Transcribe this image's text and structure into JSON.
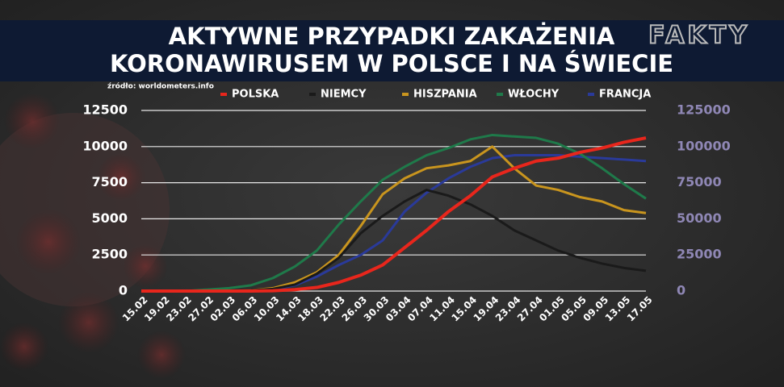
{
  "chart_data": {
    "type": "line",
    "title": [
      "AKTYWNE PRZYPADKI ZAKAŻENIA",
      "KORONAWIRUSEM W POLSCE I NA ŚWIECIE"
    ],
    "logo": "FAKTY",
    "source": "źródło: worldometers.info",
    "categories": [
      "15.02",
      "19.02",
      "23.02",
      "27.02",
      "02.03",
      "06.03",
      "10.03",
      "14.03",
      "18.03",
      "22.03",
      "26.03",
      "30.03",
      "03.04",
      "07.04",
      "11.04",
      "15.04",
      "19.04",
      "23.04",
      "27.04",
      "01.05",
      "05.05",
      "09.05",
      "13.05",
      "17.05"
    ],
    "series": [
      {
        "name": "POLSKA",
        "color": "#e8261c",
        "axis": "y",
        "values": [
          0,
          0,
          0,
          0,
          0,
          0,
          20,
          100,
          250,
          600,
          1100,
          1800,
          3000,
          4200,
          5500,
          6600,
          7900,
          8500,
          9000,
          9200,
          9600,
          9900,
          10300,
          10600
        ]
      },
      {
        "name": "NIEMCY",
        "color": "#1a1a1a",
        "axis": "y2",
        "values": [
          0,
          0,
          0,
          0,
          100,
          500,
          1500,
          4500,
          12000,
          23000,
          40000,
          52000,
          62000,
          70000,
          66000,
          60000,
          52000,
          42000,
          35000,
          28000,
          23000,
          19000,
          16000,
          14000
        ]
      },
      {
        "name": "HISZPANIA",
        "color": "#c9951e",
        "axis": "y2",
        "values": [
          0,
          0,
          0,
          0,
          0,
          500,
          2000,
          6000,
          13000,
          25000,
          45000,
          67000,
          78000,
          85000,
          87000,
          90000,
          100000,
          85000,
          73000,
          70000,
          65000,
          62000,
          56000,
          54000
        ]
      },
      {
        "name": "WŁOCHY",
        "color": "#1f7a4a",
        "axis": "y2",
        "values": [
          0,
          0,
          0,
          1000,
          2000,
          4000,
          9000,
          17000,
          28000,
          46000,
          62000,
          77000,
          86000,
          94000,
          99000,
          105000,
          108000,
          107000,
          106000,
          102000,
          95000,
          85000,
          74000,
          64000
        ]
      },
      {
        "name": "FRANCJA",
        "color": "#2a3a9a",
        "axis": "y2",
        "values": [
          0,
          0,
          0,
          0,
          100,
          300,
          1000,
          4000,
          10000,
          18000,
          25000,
          35000,
          55000,
          68000,
          78000,
          86000,
          92000,
          94000,
          94000,
          94000,
          93000,
          92000,
          91000,
          90000
        ]
      }
    ],
    "ylim": [
      0,
      12500
    ],
    "yticks": [
      0,
      2500,
      5000,
      7500,
      10000,
      12500
    ],
    "y2lim": [
      0,
      125000
    ],
    "y2ticks": [
      0,
      25000,
      50000,
      75000,
      100000,
      125000
    ],
    "grid": true
  }
}
